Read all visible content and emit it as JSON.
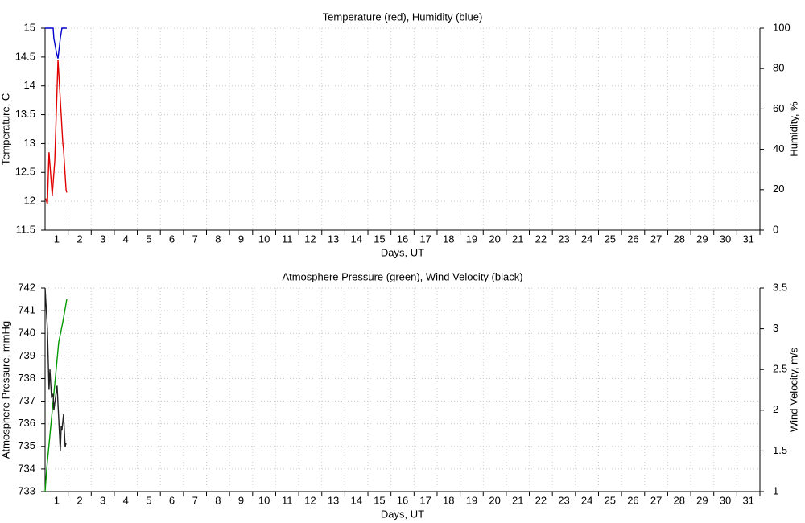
{
  "chart_data": [
    {
      "type": "line",
      "title": "Temperature (red), Humidity (blue)",
      "xlabel": "Days, UT",
      "ylabel": "Temperature, C",
      "y2label": "Humidity, %",
      "xlim": [
        0,
        31
      ],
      "xticks": [
        1,
        2,
        3,
        4,
        5,
        6,
        7,
        8,
        9,
        10,
        11,
        12,
        13,
        14,
        15,
        16,
        17,
        18,
        19,
        20,
        21,
        22,
        23,
        24,
        25,
        26,
        27,
        28,
        29,
        30,
        31
      ],
      "ylim": [
        11.5,
        15
      ],
      "yticks": [
        11.5,
        12,
        12.5,
        13,
        13.5,
        14,
        14.5,
        15
      ],
      "y2lim": [
        0,
        100
      ],
      "y2ticks": [
        0,
        20,
        40,
        60,
        80,
        100
      ],
      "grid": true,
      "ycolor": "#e00000",
      "y2color": "#0000cc",
      "series": [
        {
          "color": "#e00000",
          "axis": "y",
          "x": [
            0.03,
            0.1,
            0.17,
            0.31,
            0.42,
            0.56,
            0.77,
            0.8,
            0.91,
            0.94
          ],
          "values": [
            12.05,
            11.95,
            12.85,
            12.1,
            12.7,
            14.45,
            13.0,
            12.9,
            12.2,
            12.15
          ]
        },
        {
          "color": "#0000cc",
          "axis": "y2",
          "x": [
            0,
            0.35,
            0.38,
            0.49,
            0.56,
            0.66,
            0.73,
            0.94
          ],
          "values": [
            100,
            100,
            95,
            88,
            85,
            95,
            100,
            100
          ]
        }
      ]
    },
    {
      "type": "line",
      "title": "Atmosphere Pressure (green), Wind Velocity (black)",
      "xlabel": "Days, UT",
      "ylabel": "Atmosphere Pressure, mmHg",
      "y2label": "Wind Velocity, m/s",
      "xlim": [
        0,
        31
      ],
      "xticks": [
        1,
        2,
        3,
        4,
        5,
        6,
        7,
        8,
        9,
        10,
        11,
        12,
        13,
        14,
        15,
        16,
        17,
        18,
        19,
        20,
        21,
        22,
        23,
        24,
        25,
        26,
        27,
        28,
        29,
        30,
        31
      ],
      "ylim": [
        733,
        742
      ],
      "yticks": [
        733,
        734,
        735,
        736,
        737,
        738,
        739,
        740,
        741,
        742
      ],
      "y2lim": [
        1,
        3.5
      ],
      "y2ticks": [
        1,
        1.5,
        2,
        2.5,
        3,
        3.5
      ],
      "grid": true,
      "ycolor": "#009900",
      "y2color": "#555555",
      "series": [
        {
          "color": "#009900",
          "axis": "y",
          "x": [
            0,
            0.07,
            0.21,
            0.35,
            0.49,
            0.59,
            0.77,
            0.94
          ],
          "values": [
            733,
            734,
            735.5,
            737,
            738.5,
            739.6,
            740.5,
            741.5
          ]
        },
        {
          "color": "#222222",
          "axis": "y2",
          "x": [
            0,
            0.1,
            0.17,
            0.21,
            0.28,
            0.35,
            0.38,
            0.52,
            0.66,
            0.7,
            0.73,
            0.8,
            0.87,
            0.91
          ],
          "values": [
            3.5,
            3.0,
            2.25,
            2.5,
            2.15,
            2.2,
            2.0,
            2.3,
            1.5,
            1.8,
            1.75,
            1.95,
            1.55,
            1.6
          ]
        }
      ]
    }
  ]
}
